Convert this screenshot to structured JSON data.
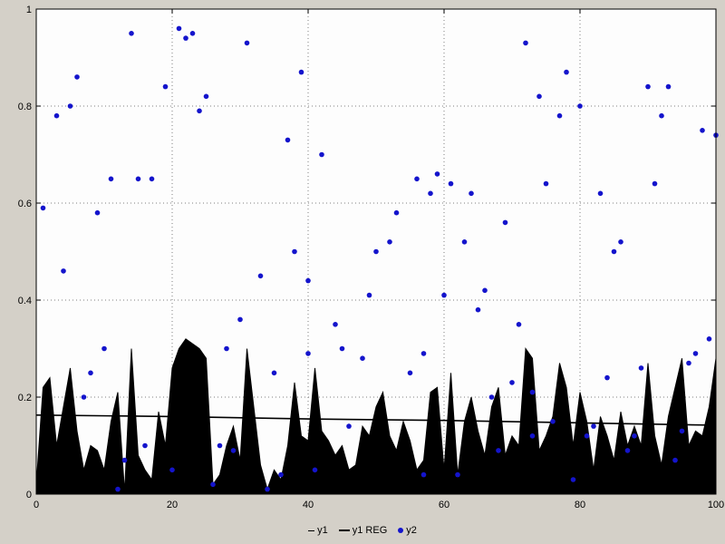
{
  "chart": {
    "frame_background": "#d4d0c8",
    "plot_background": "#fdfdfd",
    "border_color": "#000000",
    "grid_color": "#808080",
    "x_axis": {
      "min": 0,
      "max": 100,
      "tick_values": [
        0,
        20,
        40,
        60,
        80,
        100
      ],
      "tick_labels": [
        "0",
        "20",
        "40",
        "60",
        "80",
        "100"
      ]
    },
    "y_axis": {
      "min": 0,
      "max": 1,
      "tick_values": [
        0,
        0.2,
        0.4,
        0.6,
        0.8,
        1
      ],
      "tick_labels": [
        "0",
        "0.2",
        "0.4",
        "0.6",
        "0.8",
        "1"
      ]
    },
    "legend": [
      {
        "label": "y1",
        "marker": "line-thin",
        "color": "#000000"
      },
      {
        "label": "y1 REG",
        "marker": "line-thick",
        "color": "#000000"
      },
      {
        "label": "y2",
        "marker": "dot",
        "color": "#1414cc"
      }
    ]
  },
  "chart_data": {
    "type": "mixed",
    "title": "",
    "xlabel": "",
    "ylabel": "",
    "xlim": [
      0,
      100
    ],
    "ylim": [
      0,
      1
    ],
    "grid": "dotted",
    "legend_position": "bottom-center",
    "series": [
      {
        "name": "y1",
        "type": "area",
        "color": "#000000",
        "x_start": 0,
        "x_step": 1,
        "values": [
          0.02,
          0.22,
          0.24,
          0.1,
          0.18,
          0.26,
          0.13,
          0.05,
          0.1,
          0.09,
          0.05,
          0.15,
          0.21,
          0.005,
          0.3,
          0.08,
          0.05,
          0.03,
          0.17,
          0.1,
          0.26,
          0.3,
          0.32,
          0.31,
          0.3,
          0.28,
          0.02,
          0.04,
          0.1,
          0.14,
          0.07,
          0.3,
          0.18,
          0.06,
          0.01,
          0.05,
          0.03,
          0.1,
          0.23,
          0.12,
          0.11,
          0.26,
          0.13,
          0.11,
          0.08,
          0.1,
          0.05,
          0.06,
          0.14,
          0.12,
          0.18,
          0.21,
          0.12,
          0.09,
          0.15,
          0.11,
          0.05,
          0.07,
          0.21,
          0.22,
          0.05,
          0.25,
          0.04,
          0.15,
          0.2,
          0.13,
          0.08,
          0.18,
          0.22,
          0.08,
          0.12,
          0.1,
          0.3,
          0.28,
          0.09,
          0.12,
          0.16,
          0.27,
          0.22,
          0.1,
          0.21,
          0.15,
          0.05,
          0.16,
          0.12,
          0.07,
          0.17,
          0.1,
          0.14,
          0.1,
          0.27,
          0.12,
          0.06,
          0.16,
          0.22,
          0.28,
          0.1,
          0.13,
          0.12,
          0.18,
          0.28
        ]
      },
      {
        "name": "y1 REG",
        "type": "line",
        "color": "#000000",
        "points": [
          [
            0,
            0.163
          ],
          [
            20,
            0.16
          ],
          [
            40,
            0.155
          ],
          [
            60,
            0.152
          ],
          [
            80,
            0.147
          ],
          [
            100,
            0.142
          ]
        ]
      },
      {
        "name": "y2",
        "type": "scatter",
        "color": "#1414cc",
        "points": [
          [
            1,
            0.59
          ],
          [
            3,
            0.78
          ],
          [
            4,
            0.46
          ],
          [
            5,
            0.8
          ],
          [
            6,
            0.86
          ],
          [
            7,
            0.2
          ],
          [
            8,
            0.25
          ],
          [
            9,
            0.58
          ],
          [
            10,
            0.3
          ],
          [
            11,
            0.65
          ],
          [
            12,
            0.01
          ],
          [
            13,
            0.07
          ],
          [
            14,
            0.95
          ],
          [
            15,
            0.65
          ],
          [
            16,
            0.1
          ],
          [
            17,
            0.65
          ],
          [
            19,
            0.84
          ],
          [
            20,
            0.05
          ],
          [
            21,
            0.96
          ],
          [
            22,
            0.94
          ],
          [
            23,
            0.95
          ],
          [
            24,
            0.79
          ],
          [
            25,
            0.82
          ],
          [
            26,
            0.02
          ],
          [
            27,
            0.1
          ],
          [
            28,
            0.3
          ],
          [
            29,
            0.09
          ],
          [
            30,
            0.36
          ],
          [
            31,
            0.93
          ],
          [
            33,
            0.45
          ],
          [
            34,
            0.01
          ],
          [
            35,
            0.25
          ],
          [
            36,
            0.04
          ],
          [
            37,
            0.73
          ],
          [
            38,
            0.5
          ],
          [
            39,
            0.87
          ],
          [
            40,
            0.44
          ],
          [
            40,
            0.29
          ],
          [
            41,
            0.05
          ],
          [
            42,
            0.7
          ],
          [
            44,
            0.35
          ],
          [
            45,
            0.3
          ],
          [
            46,
            0.14
          ],
          [
            48,
            0.28
          ],
          [
            49,
            0.41
          ],
          [
            50,
            0.5
          ],
          [
            52,
            0.52
          ],
          [
            53,
            0.58
          ],
          [
            55,
            0.25
          ],
          [
            56,
            0.65
          ],
          [
            57,
            0.29
          ],
          [
            57,
            0.04
          ],
          [
            58,
            0.62
          ],
          [
            59,
            0.66
          ],
          [
            60,
            0.41
          ],
          [
            61,
            0.64
          ],
          [
            62,
            0.04
          ],
          [
            63,
            0.52
          ],
          [
            64,
            0.62
          ],
          [
            65,
            0.38
          ],
          [
            66,
            0.42
          ],
          [
            67,
            0.2
          ],
          [
            68,
            0.09
          ],
          [
            69,
            0.56
          ],
          [
            70,
            0.23
          ],
          [
            71,
            0.35
          ],
          [
            72,
            0.93
          ],
          [
            73,
            0.21
          ],
          [
            73,
            0.12
          ],
          [
            74,
            0.82
          ],
          [
            75,
            0.64
          ],
          [
            76,
            0.15
          ],
          [
            77,
            0.78
          ],
          [
            78,
            0.87
          ],
          [
            79,
            0.03
          ],
          [
            80,
            0.8
          ],
          [
            81,
            0.12
          ],
          [
            82,
            0.14
          ],
          [
            83,
            0.62
          ],
          [
            84,
            0.24
          ],
          [
            85,
            0.5
          ],
          [
            86,
            0.52
          ],
          [
            87,
            0.09
          ],
          [
            88,
            0.12
          ],
          [
            89,
            0.26
          ],
          [
            90,
            0.84
          ],
          [
            91,
            0.64
          ],
          [
            92,
            0.78
          ],
          [
            93,
            0.84
          ],
          [
            94,
            0.07
          ],
          [
            95,
            0.13
          ],
          [
            96,
            0.27
          ],
          [
            97,
            0.29
          ],
          [
            98,
            0.75
          ],
          [
            99,
            0.32
          ],
          [
            100,
            0.74
          ]
        ]
      }
    ]
  }
}
